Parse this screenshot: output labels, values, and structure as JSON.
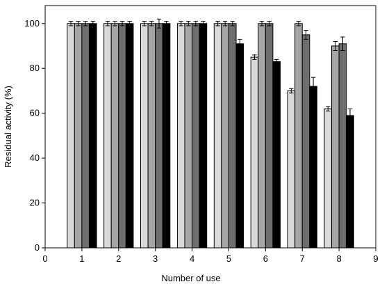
{
  "chart_data": {
    "type": "bar",
    "x_label": "Number of use",
    "y_label": "Residual activity (%)",
    "x": [
      1,
      2,
      3,
      4,
      5,
      6,
      7,
      8
    ],
    "series": [
      {
        "color": "#d9d9d9",
        "values": [
          100,
          100,
          100,
          100,
          100,
          85,
          70,
          62
        ],
        "errors": [
          1,
          1,
          1,
          1,
          1,
          1,
          1,
          1
        ]
      },
      {
        "color": "#a6a6a6",
        "values": [
          100,
          100,
          100,
          100,
          100,
          100,
          100,
          90
        ],
        "errors": [
          1,
          1,
          1,
          1,
          1,
          1,
          1,
          2
        ]
      },
      {
        "color": "#6e6e6e",
        "values": [
          100,
          100,
          100,
          100,
          100,
          100,
          95,
          91
        ],
        "errors": [
          1,
          1,
          2,
          1,
          1,
          1,
          2,
          3
        ]
      },
      {
        "color": "#000000",
        "values": [
          100,
          100,
          100,
          100,
          91,
          83,
          72,
          59
        ],
        "errors": [
          1,
          1,
          1,
          1,
          2,
          1,
          4,
          3
        ]
      }
    ],
    "xlim": [
      0,
      9
    ],
    "xticks": [
      0,
      1,
      2,
      3,
      4,
      5,
      6,
      7,
      8,
      9
    ],
    "ylim": [
      0,
      108
    ],
    "yticks": [
      0,
      20,
      40,
      60,
      80,
      100
    ]
  }
}
